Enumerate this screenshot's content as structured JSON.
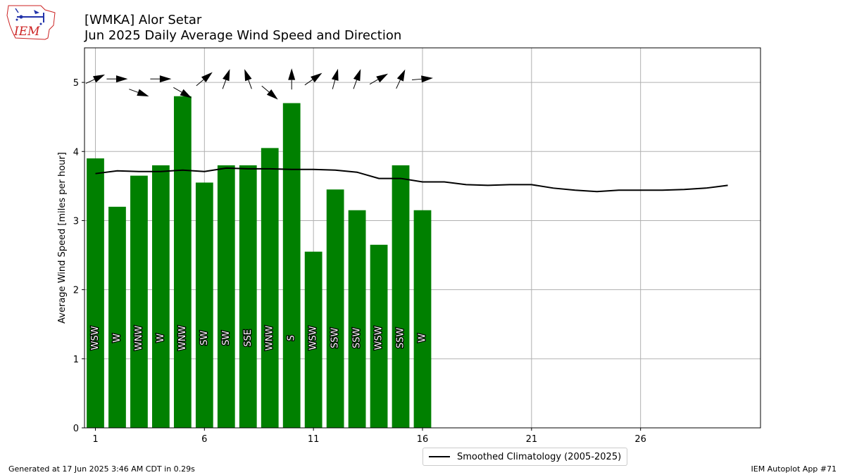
{
  "header": {
    "logo_text": "IEM",
    "title_line1": "[WMKA] Alor Setar",
    "title_line2": "Jun 2025 Daily Average Wind Speed and Direction"
  },
  "footer": {
    "left": "Generated at 17 Jun 2025 3:46 AM CDT in 0.29s",
    "right": "IEM Autoplot App #71"
  },
  "colors": {
    "bar": "#008000",
    "climatology": "#000000",
    "grid": "#b0b0b0",
    "logo_red": "#cc2222",
    "logo_blue": "#2233aa"
  },
  "chart_data": {
    "type": "bar",
    "ylabel": "Average Wind Speed [miles per hour]",
    "xlim": [
      0.5,
      31.5
    ],
    "ylim": [
      0,
      5.5
    ],
    "xticks": [
      1,
      6,
      11,
      16,
      21,
      26
    ],
    "yticks": [
      0,
      1,
      2,
      3,
      4,
      5
    ],
    "grid": true,
    "legend_placement": "bottom-center",
    "days": [
      1,
      2,
      3,
      4,
      5,
      6,
      7,
      8,
      9,
      10,
      11,
      12,
      13,
      14,
      15,
      16
    ],
    "speeds": [
      3.9,
      3.2,
      3.65,
      3.8,
      4.8,
      3.55,
      3.8,
      3.8,
      4.05,
      4.7,
      2.55,
      3.45,
      3.15,
      2.65,
      3.8,
      3.15
    ],
    "directions": [
      "WSW",
      "W",
      "WNW",
      "W",
      "WNW",
      "SW",
      "SW",
      "SSE",
      "WNW",
      "S",
      "WSW",
      "SSW",
      "SSW",
      "WSW",
      "SSW",
      "W"
    ],
    "arrow_bearings_deg": [
      245,
      270,
      290,
      270,
      300,
      230,
      200,
      160,
      310,
      180,
      235,
      195,
      200,
      240,
      205,
      265
    ],
    "arrow_levels": [
      5.05,
      5.05,
      4.85,
      5.05,
      4.85,
      5.05,
      5.05,
      5.05,
      4.85,
      5.05,
      5.05,
      5.05,
      5.05,
      5.05,
      5.05,
      5.05
    ],
    "climatology": {
      "name": "Smoothed Climatology (2005-2025)",
      "x": [
        1,
        2,
        3,
        4,
        5,
        6,
        7,
        8,
        9,
        10,
        11,
        12,
        13,
        14,
        15,
        16,
        17,
        18,
        19,
        20,
        21,
        22,
        23,
        24,
        25,
        26,
        27,
        28,
        29,
        30
      ],
      "y": [
        3.68,
        3.72,
        3.71,
        3.71,
        3.73,
        3.71,
        3.76,
        3.75,
        3.75,
        3.74,
        3.74,
        3.73,
        3.7,
        3.61,
        3.61,
        3.56,
        3.56,
        3.52,
        3.51,
        3.52,
        3.52,
        3.47,
        3.44,
        3.42,
        3.44,
        3.44,
        3.44,
        3.45,
        3.47,
        3.51
      ]
    }
  }
}
